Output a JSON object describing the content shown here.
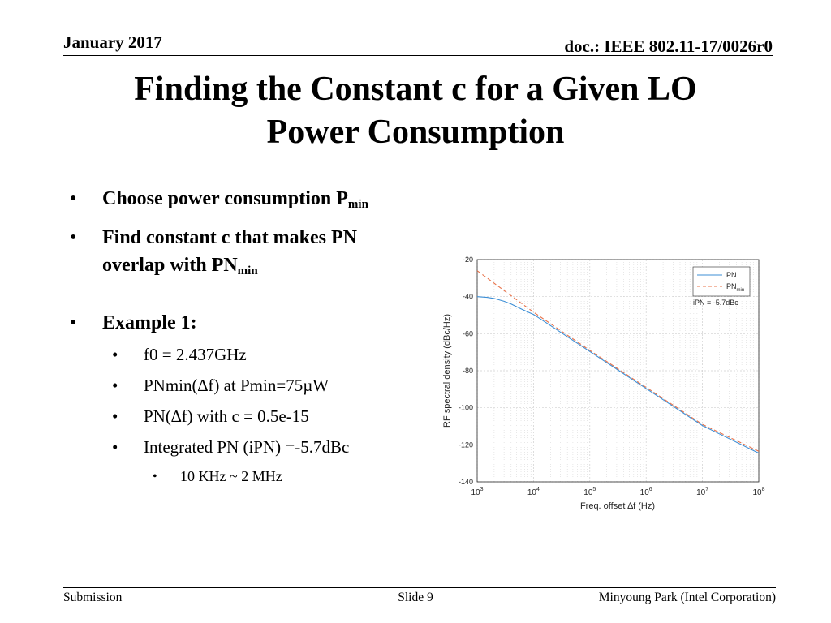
{
  "header": {
    "date": "January 2017",
    "doc": "doc.: IEEE 802.11-17/0026r0"
  },
  "title": {
    "line1": "Finding the Constant c for a Given LO",
    "line2": "Power Consumption"
  },
  "bullets": {
    "b1": {
      "text": "Choose power consumption P",
      "sub": "min"
    },
    "b2": {
      "text1": "Find constant c that makes PN",
      "text2": "overlap with PN",
      "sub": "min"
    },
    "b3": {
      "text": "Example 1:"
    },
    "sub_items": [
      "f0 = 2.437GHz",
      "PNmin(∆f) at Pmin=75µW",
      "PN(∆f) with c = 0.5e-15",
      "Integrated PN (iPN) =-5.7dBc"
    ],
    "sub_sub": "10 KHz ~ 2 MHz"
  },
  "footer": {
    "left": "Submission",
    "center": "Slide 9",
    "right": "Minyoung Park (Intel Corporation)"
  },
  "chart_data": {
    "type": "line",
    "xlabel": "Freq. offset ∆f (Hz)",
    "ylabel": "RF spectral density (dBc/Hz)",
    "x_scale": "log",
    "xlim": [
      1000,
      100000000
    ],
    "ylim": [
      -140,
      -20
    ],
    "x_ticks": [
      {
        "value": 1000,
        "base": "10",
        "exp": "3"
      },
      {
        "value": 10000,
        "base": "10",
        "exp": "4"
      },
      {
        "value": 100000,
        "base": "10",
        "exp": "5"
      },
      {
        "value": 1000000,
        "base": "10",
        "exp": "6"
      },
      {
        "value": 10000000,
        "base": "10",
        "exp": "7"
      },
      {
        "value": 100000000,
        "base": "10",
        "exp": "8"
      }
    ],
    "y_ticks": [
      -20,
      -40,
      -60,
      -80,
      -100,
      -120,
      -140
    ],
    "grid": true,
    "legend_position": "top-right",
    "annotation": "iPN = -5.7dBc",
    "series": [
      {
        "name": "PN",
        "name_sub": "",
        "color": "#3d8fd6",
        "dash": "solid",
        "x": [
          1000,
          1500,
          2000,
          3000,
          4000,
          5000,
          6000,
          8000,
          10000,
          20000,
          100000,
          1000000,
          10000000,
          100000000
        ],
        "y": [
          -40,
          -40.4,
          -41,
          -42.5,
          -44,
          -45.4,
          -46.6,
          -48.4,
          -49.6,
          -55.6,
          -69.6,
          -89.6,
          -109.6,
          -124.5
        ]
      },
      {
        "name": "PN",
        "name_sub": "min",
        "color": "#e8734a",
        "dash": "dashed",
        "x": [
          1000,
          10000,
          100000,
          1000000,
          10000000,
          100000000
        ],
        "y": [
          -26,
          -48.4,
          -69,
          -89,
          -109,
          -123.5
        ]
      }
    ]
  }
}
